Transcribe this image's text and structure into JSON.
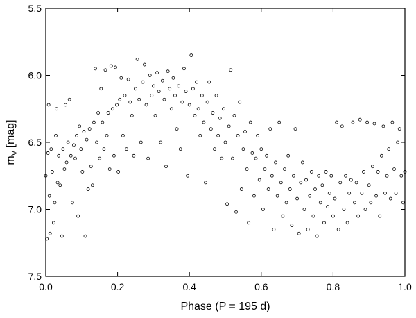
{
  "chart_data": {
    "type": "scatter",
    "xlabel": "Phase (P = 195 d)",
    "ylabel": [
      "m",
      "V",
      " [mag]"
    ],
    "xlim": [
      0,
      1
    ],
    "ylim": [
      7.5,
      5.5
    ],
    "xticks": [
      {
        "value": 0,
        "label": "0.0"
      },
      0.2,
      0.4,
      0.6,
      0.8,
      {
        "value": 1,
        "label": "1.0"
      }
    ],
    "yticks": [
      7.5,
      {
        "value": 7,
        "label": "7.0"
      },
      6.5,
      {
        "value": 6,
        "label": "6.0"
      },
      5.5
    ],
    "color": "#000000",
    "x": [
      0,
      0.003,
      0.006,
      0.008,
      0.01,
      0.012,
      0.015,
      0.018,
      0.022,
      0.025,
      0.028,
      0.03,
      0.033,
      0.036,
      0.04,
      0.045,
      0.048,
      0.052,
      0.055,
      0.058,
      0.062,
      0.066,
      0.07,
      0.074,
      0.078,
      0.082,
      0.086,
      0.09,
      0.094,
      0.098,
      0.102,
      0.106,
      0.11,
      0.114,
      0.118,
      0.122,
      0.126,
      0.13,
      0.134,
      0.138,
      0.142,
      0.146,
      0.15,
      0.154,
      0.158,
      0.162,
      0.166,
      0.17,
      0.174,
      0.178,
      0.182,
      0.186,
      0.19,
      0.194,
      0.198,
      0.202,
      0.206,
      0.21,
      0.215,
      0.22,
      0.225,
      0.23,
      0.235,
      0.24,
      0.245,
      0.25,
      0.255,
      0.26,
      0.265,
      0.27,
      0.275,
      0.28,
      0.285,
      0.29,
      0.295,
      0.3,
      0.305,
      0.31,
      0.315,
      0.32,
      0.325,
      0.33,
      0.335,
      0.34,
      0.345,
      0.35,
      0.355,
      0.36,
      0.365,
      0.37,
      0.375,
      0.38,
      0.385,
      0.39,
      0.395,
      0.4,
      0.405,
      0.41,
      0.415,
      0.42,
      0.425,
      0.43,
      0.435,
      0.44,
      0.445,
      0.45,
      0.455,
      0.46,
      0.465,
      0.47,
      0.475,
      0.48,
      0.485,
      0.49,
      0.495,
      0.5,
      0.505,
      0.51,
      0.515,
      0.52,
      0.525,
      0.53,
      0.535,
      0.54,
      0.545,
      0.55,
      0.555,
      0.56,
      0.565,
      0.57,
      0.575,
      0.58,
      0.585,
      0.59,
      0.595,
      0.6,
      0.605,
      0.61,
      0.615,
      0.62,
      0.625,
      0.63,
      0.635,
      0.64,
      0.645,
      0.65,
      0.655,
      0.66,
      0.665,
      0.67,
      0.675,
      0.68,
      0.685,
      0.69,
      0.695,
      0.7,
      0.705,
      0.71,
      0.715,
      0.72,
      0.725,
      0.73,
      0.735,
      0.74,
      0.745,
      0.75,
      0.755,
      0.76,
      0.765,
      0.77,
      0.775,
      0.78,
      0.785,
      0.79,
      0.795,
      0.8,
      0.805,
      0.81,
      0.815,
      0.82,
      0.825,
      0.83,
      0.835,
      0.84,
      0.845,
      0.85,
      0.855,
      0.86,
      0.865,
      0.87,
      0.875,
      0.88,
      0.885,
      0.89,
      0.895,
      0.9,
      0.905,
      0.91,
      0.915,
      0.92,
      0.925,
      0.93,
      0.935,
      0.94,
      0.945,
      0.95,
      0.955,
      0.96,
      0.965,
      0.97,
      0.975,
      0.98,
      0.985,
      0.99,
      0.995,
      1
    ],
    "values": [
      6.75,
      7.22,
      6.58,
      6.22,
      6.9,
      7.18,
      6.55,
      6.72,
      7.1,
      6.95,
      6.45,
      6.25,
      6.8,
      6.6,
      6.82,
      7.2,
      6.55,
      6.7,
      6.22,
      6.65,
      6.5,
      6.18,
      6.6,
      6.95,
      6.52,
      6.62,
      6.45,
      7.05,
      6.38,
      6.55,
      6.72,
      6.42,
      7.2,
      6.48,
      6.85,
      6.4,
      6.68,
      6.82,
      6.35,
      5.95,
      6.5,
      6.28,
      6.62,
      6.1,
      6.35,
      6.55,
      5.96,
      6.45,
      6.28,
      6.7,
      5.93,
      6.25,
      6.6,
      5.94,
      6.22,
      6.72,
      6.18,
      6.02,
      6.45,
      6.15,
      6.55,
      6.03,
      6.2,
      6.3,
      6.6,
      6.1,
      5.88,
      6.18,
      6.5,
      6.05,
      5.92,
      6.22,
      6.62,
      6,
      6.15,
      6.08,
      6.3,
      5.98,
      6.12,
      6.5,
      6.04,
      6.18,
      6.68,
      5.97,
      6.1,
      6.25,
      6.02,
      6.15,
      6.4,
      6.08,
      6.55,
      6.2,
      5.95,
      6.12,
      6.75,
      6.22,
      5.85,
      6.1,
      6.3,
      6.05,
      6.25,
      6.45,
      6.15,
      6.35,
      6.8,
      6.2,
      6.05,
      6.4,
      6.28,
      6.55,
      6.15,
      6.45,
      6.32,
      6.62,
      6.25,
      6.5,
      6.96,
      6.38,
      5.96,
      6.62,
      6.3,
      7.02,
      6.45,
      6.2,
      6.85,
      6.55,
      6.42,
      6.7,
      7.1,
      6.35,
      6.58,
      6.9,
      6.62,
      6.45,
      6.78,
      6.55,
      7,
      6.7,
      6.6,
      6.85,
      6.4,
      6.75,
      7.15,
      6.65,
      6.9,
      6.35,
      6.8,
      7.05,
      6.7,
      6.95,
      6.6,
      6.85,
      7.12,
      6.75,
      6.4,
      6.92,
      7.18,
      6.8,
      6.65,
      7,
      6.78,
      7.15,
      6.9,
      6.72,
      7.05,
      6.85,
      7.2,
      6.75,
      6.95,
      6.82,
      7.1,
      6.72,
      6.98,
      6.88,
      6.75,
      7.05,
      6.92,
      6.35,
      7.15,
      6.8,
      6.38,
      7,
      6.75,
      7.1,
      6.88,
      6.78,
      6.35,
      6.95,
      6.8,
      7.05,
      6.33,
      6.88,
      6.72,
      7,
      6.35,
      6.82,
      6.95,
      6.68,
      6.36,
      6.9,
      6.72,
      7.05,
      6.6,
      6.38,
      6.88,
      6.75,
      6.55,
      6.92,
      6.35,
      6.7,
      6.88,
      6.5,
      6.4,
      6.75,
      6.95,
      6.72
    ]
  }
}
